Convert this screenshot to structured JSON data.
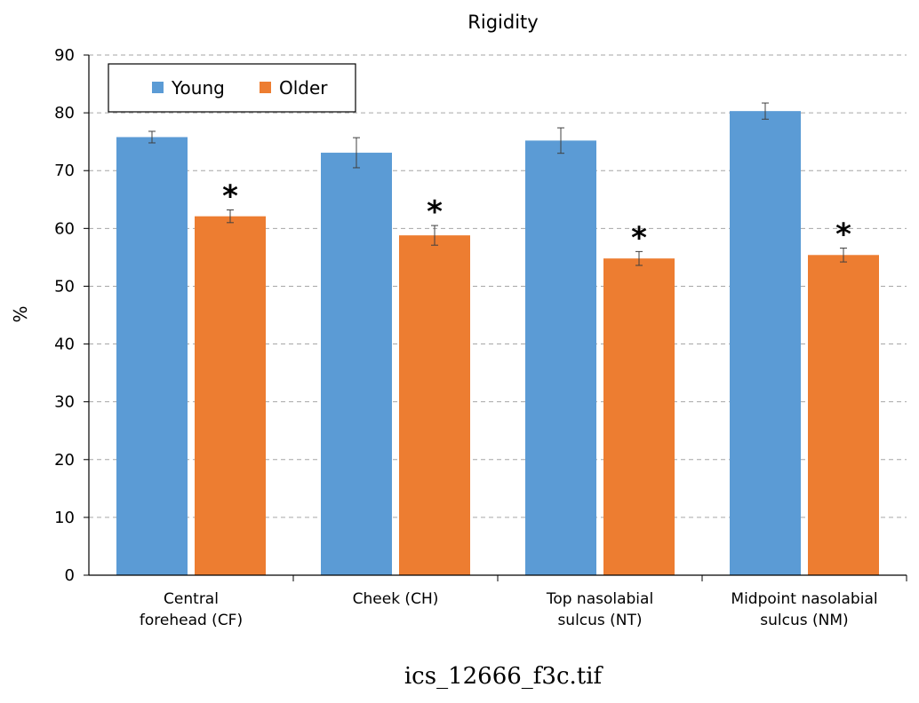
{
  "caption": "ics_12666_f3c.tif",
  "chart_data": {
    "type": "bar",
    "title": "Rigidity",
    "xlabel": "",
    "ylabel": "%",
    "ylim": [
      0,
      90
    ],
    "yticks": [
      0,
      10,
      20,
      30,
      40,
      50,
      60,
      70,
      80,
      90
    ],
    "grid": true,
    "legend": "top-left",
    "categories": [
      [
        "Central",
        "forehead (CF)"
      ],
      [
        "Cheek (CH)"
      ],
      [
        "Top nasolabial",
        "sulcus (NT)"
      ],
      [
        "Midpoint nasolabial",
        "sulcus (NM)"
      ]
    ],
    "series": [
      {
        "name": "Young",
        "color": "#5B9BD5",
        "values": [
          75.8,
          73.1,
          75.2,
          80.3
        ],
        "errors": [
          1.0,
          2.6,
          2.2,
          1.4
        ],
        "significant": [
          false,
          false,
          false,
          false
        ]
      },
      {
        "name": "Older",
        "color": "#ED7D31",
        "values": [
          62.1,
          58.8,
          54.8,
          55.4
        ],
        "errors": [
          1.1,
          1.7,
          1.2,
          1.2
        ],
        "significant": [
          true,
          true,
          true,
          true
        ]
      }
    ],
    "significance_marker": "*"
  }
}
